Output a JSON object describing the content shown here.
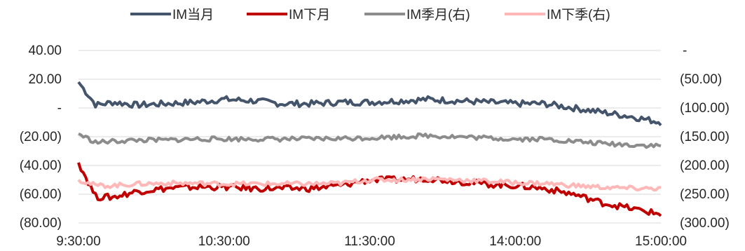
{
  "chart_data": {
    "type": "line",
    "title": "",
    "xlabel": "",
    "ylabel": "",
    "x_ticks": [
      "9:30:00",
      "10:30:00",
      "11:30:00",
      "14:00:00",
      "15:00:00"
    ],
    "left_axis": {
      "ylim": [
        -80,
        40
      ],
      "ticks": [
        40,
        20,
        0,
        -20,
        -40,
        -60,
        -80
      ],
      "tick_labels": [
        "40.00",
        "20.00",
        "-",
        "(20.00)",
        "(40.00)",
        "(60.00)",
        "(80.00)"
      ]
    },
    "right_axis": {
      "ylim": [
        -300,
        0
      ],
      "ticks": [
        0,
        -50,
        -100,
        -150,
        -200,
        -250,
        -300
      ],
      "tick_labels": [
        "-",
        "(50.00)",
        "(100.00)",
        "(150.00)",
        "(200.00)",
        "(250.00)",
        "(300.00)"
      ]
    },
    "grid": true,
    "legend_position": "top",
    "series": [
      {
        "name": "IM当月",
        "axis": "left",
        "color": "#44546a",
        "x": [
          0,
          0.03,
          0.06,
          0.1,
          0.15,
          0.2,
          0.25,
          0.3,
          0.35,
          0.4,
          0.45,
          0.5,
          0.55,
          0.6,
          0.65,
          0.7,
          0.75,
          0.8,
          0.85,
          0.9,
          0.95,
          1
        ],
        "values": [
          18,
          2,
          4,
          2,
          3,
          4,
          6,
          5,
          3,
          3,
          4,
          4,
          5,
          6,
          5,
          4,
          3,
          3,
          0,
          -3,
          -6,
          -10
        ]
      },
      {
        "name": "IM下月",
        "axis": "left",
        "color": "#c00000",
        "x": [
          0,
          0.03,
          0.06,
          0.1,
          0.15,
          0.2,
          0.25,
          0.3,
          0.35,
          0.4,
          0.45,
          0.5,
          0.55,
          0.6,
          0.65,
          0.7,
          0.75,
          0.8,
          0.85,
          0.9,
          0.95,
          1
        ],
        "values": [
          -38,
          -62,
          -62,
          -58,
          -56,
          -55,
          -55,
          -56,
          -56,
          -56,
          -54,
          -50,
          -50,
          -49,
          -51,
          -53,
          -54,
          -56,
          -60,
          -66,
          -70,
          -74
        ]
      },
      {
        "name": "IM季月(右)",
        "axis": "right",
        "color": "#8c8c8c",
        "x": [
          0,
          0.03,
          0.06,
          0.1,
          0.15,
          0.2,
          0.25,
          0.3,
          0.35,
          0.4,
          0.45,
          0.5,
          0.55,
          0.6,
          0.65,
          0.7,
          0.75,
          0.8,
          0.85,
          0.9,
          0.95,
          1
        ],
        "values": [
          -145,
          -160,
          -158,
          -156,
          -156,
          -154,
          -154,
          -154,
          -154,
          -154,
          -153,
          -152,
          -150,
          -148,
          -150,
          -152,
          -154,
          -154,
          -158,
          -162,
          -164,
          -166
        ]
      },
      {
        "name": "IM下季(右)",
        "axis": "right",
        "color": "#ffb7b7",
        "x": [
          0,
          0.03,
          0.06,
          0.1,
          0.15,
          0.2,
          0.25,
          0.3,
          0.35,
          0.4,
          0.45,
          0.5,
          0.55,
          0.6,
          0.65,
          0.7,
          0.75,
          0.8,
          0.85,
          0.9,
          0.95,
          1
        ],
        "values": [
          -225,
          -235,
          -235,
          -232,
          -231,
          -231,
          -232,
          -232,
          -232,
          -232,
          -231,
          -225,
          -225,
          -223,
          -225,
          -227,
          -230,
          -231,
          -235,
          -238,
          -240,
          -240
        ]
      }
    ]
  }
}
